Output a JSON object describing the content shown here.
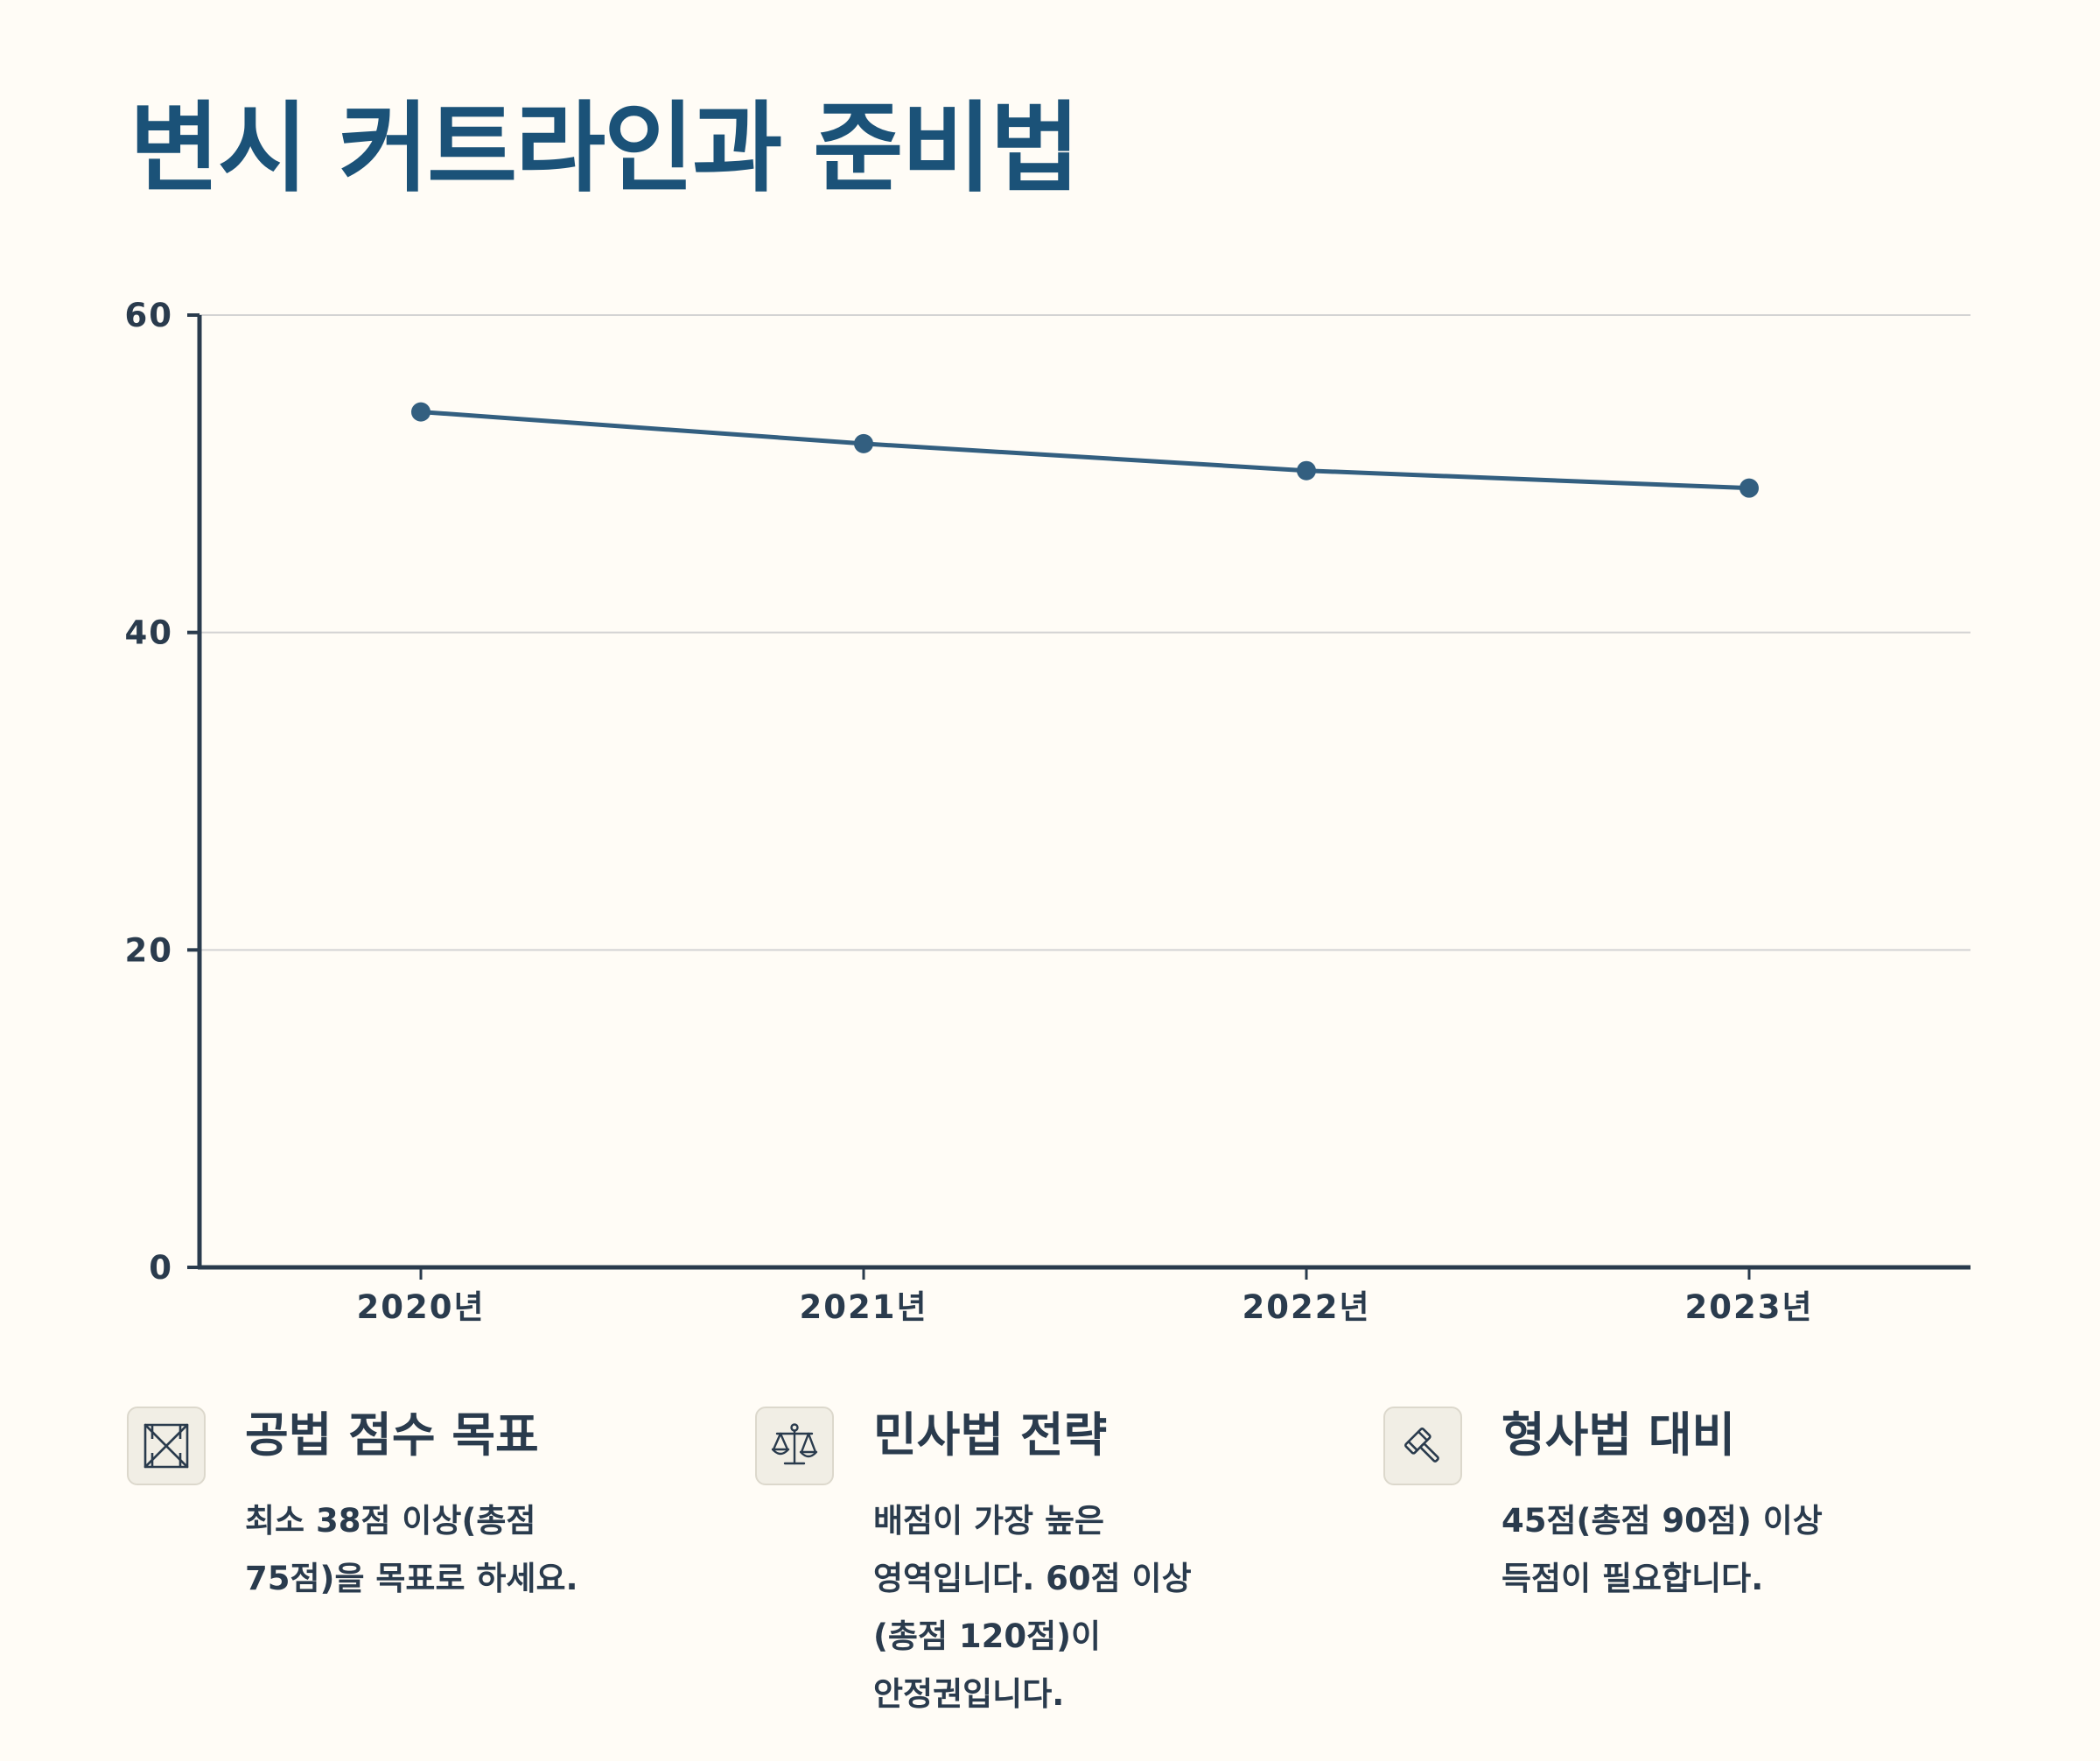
{
  "title": "변시 커트라인과 준비법",
  "colors": {
    "title": "#1b5278",
    "line": "#335f80",
    "text": "#2a3b4d",
    "background": "#fffcf6",
    "grid": "#d3d3d3"
  },
  "chart_data": {
    "type": "line",
    "categories": [
      "2020년",
      "2021년",
      "2022년",
      "2023년"
    ],
    "series": [
      {
        "values": [
          53.9,
          51.9,
          50.2,
          49.1
        ]
      }
    ],
    "title": "",
    "xlabel": "",
    "ylabel": "",
    "ylim": [
      0,
      60
    ],
    "yticks": [
      0,
      20,
      40,
      60
    ],
    "grid": true,
    "legend": "none"
  },
  "tips": [
    {
      "icon": "hourglass-icon",
      "title": "공법 점수 목표",
      "body": "최소 38점 이상(총점 75점)을 목표로 하세요."
    },
    {
      "icon": "scales-icon",
      "title": "민사법 전략",
      "body": "배점이 가장 높은 영역입니다. 60점 이상(총점 120점)이 안정권입니다."
    },
    {
      "icon": "gavel-icon",
      "title": "형사법 대비",
      "body": "45점(총점 90점) 이상 득점이 필요합니다."
    }
  ]
}
